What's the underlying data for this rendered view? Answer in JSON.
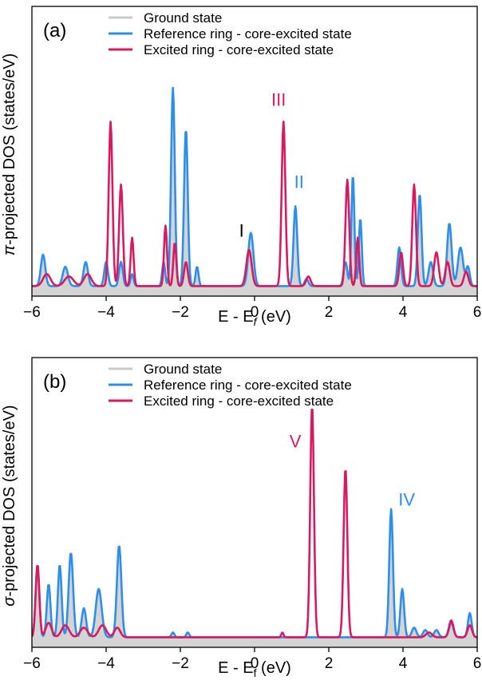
{
  "colors": {
    "ground": "#c8c8c8",
    "ground_fill": "#d4d4d4",
    "reference": "#2f8fe8",
    "excited": "#d81b60"
  },
  "chart_data": [
    {
      "type": "line",
      "panel_label": "(a)",
      "xlabel_main": "E - E",
      "xlabel_sub": "f",
      "xlabel_unit": " (eV)",
      "ylabel_symbol": "π",
      "ylabel_rest": "-projected DOS (states/eV)",
      "xlim": [
        -6,
        6
      ],
      "ylim": [
        0,
        1.0
      ],
      "x_ticks": [
        -6,
        -4,
        -2,
        0,
        2,
        4,
        6
      ],
      "x_tick_labels": [
        "−6",
        "−4",
        "−2",
        "0",
        "2",
        "4",
        "6"
      ],
      "legend_position": "top-left",
      "series": [
        {
          "name": "Ground state",
          "color_key": "ground",
          "filled": true,
          "peaks": [
            [
              -5.7,
              0.13,
              0.06
            ],
            [
              -5.1,
              0.08,
              0.07
            ],
            [
              -4.55,
              0.1,
              0.06
            ],
            [
              -4.0,
              0.1,
              0.05
            ],
            [
              -3.6,
              0.1,
              0.05
            ],
            [
              -3.3,
              0.05,
              0.04
            ],
            [
              -2.45,
              0.1,
              0.04
            ],
            [
              -2.2,
              0.82,
              0.05
            ],
            [
              -1.85,
              0.65,
              0.05
            ],
            [
              -1.55,
              0.08,
              0.04
            ],
            [
              -0.1,
              0.22,
              0.07
            ],
            [
              1.1,
              0.33,
              0.05
            ],
            [
              1.4,
              0.03,
              0.05
            ],
            [
              2.45,
              0.1,
              0.05
            ],
            [
              2.65,
              0.46,
              0.04
            ],
            [
              2.85,
              0.28,
              0.04
            ],
            [
              3.9,
              0.16,
              0.05
            ],
            [
              4.45,
              0.38,
              0.05
            ],
            [
              4.75,
              0.1,
              0.06
            ],
            [
              5.25,
              0.26,
              0.06
            ],
            [
              5.55,
              0.16,
              0.07
            ],
            [
              5.75,
              0.08,
              0.05
            ]
          ]
        },
        {
          "name": "Reference ring - core-excited state",
          "color_key": "reference",
          "filled": false,
          "peaks": [
            [
              -5.7,
              0.13,
              0.06
            ],
            [
              -5.1,
              0.08,
              0.07
            ],
            [
              -4.55,
              0.1,
              0.06
            ],
            [
              -4.0,
              0.1,
              0.05
            ],
            [
              -3.6,
              0.1,
              0.05
            ],
            [
              -3.3,
              0.05,
              0.04
            ],
            [
              -2.45,
              0.1,
              0.04
            ],
            [
              -2.2,
              0.82,
              0.05
            ],
            [
              -1.85,
              0.65,
              0.05
            ],
            [
              -1.55,
              0.08,
              0.04
            ],
            [
              -0.1,
              0.22,
              0.07
            ],
            [
              1.1,
              0.33,
              0.05
            ],
            [
              1.4,
              0.03,
              0.05
            ],
            [
              2.45,
              0.1,
              0.05
            ],
            [
              2.65,
              0.46,
              0.04
            ],
            [
              2.85,
              0.28,
              0.04
            ],
            [
              3.9,
              0.16,
              0.05
            ],
            [
              4.45,
              0.38,
              0.05
            ],
            [
              4.75,
              0.1,
              0.06
            ],
            [
              5.25,
              0.26,
              0.06
            ],
            [
              5.55,
              0.16,
              0.07
            ],
            [
              5.75,
              0.08,
              0.05
            ]
          ]
        },
        {
          "name": "Excited ring - core-excited state",
          "color_key": "excited",
          "filled": false,
          "peaks": [
            [
              -5.6,
              0.05,
              0.1
            ],
            [
              -5.0,
              0.04,
              0.12
            ],
            [
              -4.5,
              0.05,
              0.1
            ],
            [
              -3.88,
              0.68,
              0.05
            ],
            [
              -3.6,
              0.42,
              0.05
            ],
            [
              -3.3,
              0.2,
              0.04
            ],
            [
              -2.4,
              0.25,
              0.04
            ],
            [
              -2.15,
              0.18,
              0.04
            ],
            [
              -1.85,
              0.1,
              0.05
            ],
            [
              -0.15,
              0.15,
              0.07
            ],
            [
              0.78,
              0.68,
              0.05
            ],
            [
              1.45,
              0.04,
              0.06
            ],
            [
              2.5,
              0.44,
              0.05
            ],
            [
              2.78,
              0.2,
              0.04
            ],
            [
              3.95,
              0.14,
              0.05
            ],
            [
              4.3,
              0.42,
              0.05
            ],
            [
              4.9,
              0.14,
              0.06
            ],
            [
              5.2,
              0.1,
              0.06
            ],
            [
              5.7,
              0.06,
              0.06
            ]
          ]
        }
      ],
      "annotations": [
        {
          "text": "I",
          "x": -0.35,
          "y": 0.22,
          "color_key": "black"
        },
        {
          "text": "II",
          "x": 1.2,
          "y": 0.42,
          "color_key": "reference"
        },
        {
          "text": "III",
          "x": 0.65,
          "y": 0.76,
          "color_key": "excited"
        }
      ]
    },
    {
      "type": "line",
      "panel_label": "(b)",
      "xlabel_main": "E - E",
      "xlabel_sub": "f",
      "xlabel_unit": " (eV)",
      "ylabel_symbol": "σ",
      "ylabel_rest": "-projected DOS (states/eV)",
      "xlim": [
        -6,
        6
      ],
      "ylim": [
        0,
        1.0
      ],
      "x_ticks": [
        -6,
        -4,
        -2,
        0,
        2,
        4,
        6
      ],
      "x_tick_labels": [
        "−6",
        "−4",
        "−2",
        "0",
        "2",
        "4",
        "6"
      ],
      "legend_position": "top-left",
      "series": [
        {
          "name": "Ground state",
          "color_key": "ground",
          "filled": true,
          "peaks": [
            [
              -5.85,
              0.3,
              0.05
            ],
            [
              -5.55,
              0.22,
              0.05
            ],
            [
              -5.25,
              0.3,
              0.05
            ],
            [
              -4.95,
              0.35,
              0.06
            ],
            [
              -4.6,
              0.12,
              0.06
            ],
            [
              -4.2,
              0.2,
              0.08
            ],
            [
              -3.65,
              0.38,
              0.06
            ],
            [
              -2.2,
              0.02,
              0.04
            ],
            [
              -1.8,
              0.02,
              0.04
            ],
            [
              3.68,
              0.53,
              0.05
            ],
            [
              3.98,
              0.2,
              0.05
            ],
            [
              4.3,
              0.04,
              0.06
            ],
            [
              4.6,
              0.03,
              0.06
            ],
            [
              4.9,
              0.03,
              0.06
            ],
            [
              5.3,
              0.06,
              0.06
            ],
            [
              5.8,
              0.1,
              0.05
            ]
          ]
        },
        {
          "name": "Reference ring - core-excited state",
          "color_key": "reference",
          "filled": false,
          "peaks": [
            [
              -5.85,
              0.3,
              0.05
            ],
            [
              -5.55,
              0.22,
              0.05
            ],
            [
              -5.25,
              0.3,
              0.05
            ],
            [
              -4.95,
              0.35,
              0.06
            ],
            [
              -4.6,
              0.12,
              0.06
            ],
            [
              -4.2,
              0.2,
              0.08
            ],
            [
              -3.65,
              0.38,
              0.06
            ],
            [
              -2.2,
              0.02,
              0.04
            ],
            [
              -1.8,
              0.02,
              0.04
            ],
            [
              3.68,
              0.53,
              0.05
            ],
            [
              3.98,
              0.2,
              0.05
            ],
            [
              4.3,
              0.04,
              0.06
            ],
            [
              4.6,
              0.03,
              0.06
            ],
            [
              4.9,
              0.03,
              0.06
            ],
            [
              5.3,
              0.06,
              0.06
            ],
            [
              5.8,
              0.1,
              0.05
            ]
          ]
        },
        {
          "name": "Excited ring - core-excited state",
          "color_key": "excited",
          "filled": false,
          "peaks": [
            [
              -5.85,
              0.3,
              0.05
            ],
            [
              -5.55,
              0.06,
              0.08
            ],
            [
              -5.1,
              0.05,
              0.1
            ],
            [
              -4.6,
              0.04,
              0.1
            ],
            [
              -4.1,
              0.05,
              0.1
            ],
            [
              -3.7,
              0.04,
              0.08
            ],
            [
              0.75,
              0.02,
              0.03
            ],
            [
              1.55,
              0.96,
              0.05
            ],
            [
              2.45,
              0.7,
              0.05
            ],
            [
              4.7,
              0.02,
              0.08
            ],
            [
              5.3,
              0.07,
              0.06
            ],
            [
              5.8,
              0.05,
              0.06
            ]
          ]
        }
      ],
      "annotations": [
        {
          "text": "V",
          "x": 1.1,
          "y": 0.8,
          "color_key": "excited"
        },
        {
          "text": "IV",
          "x": 4.1,
          "y": 0.56,
          "color_key": "reference"
        }
      ]
    }
  ]
}
